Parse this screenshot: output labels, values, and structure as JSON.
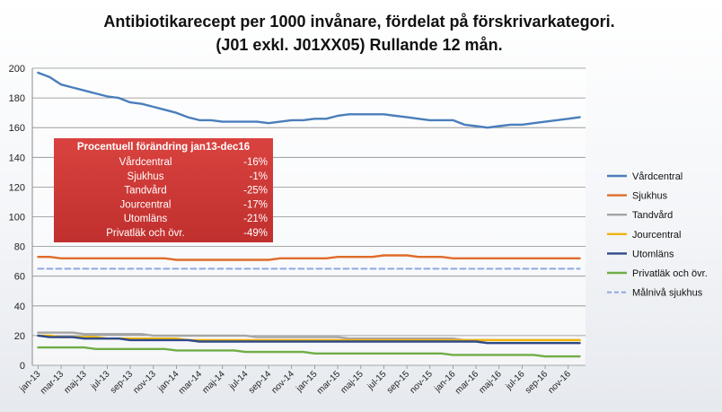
{
  "chart_data": {
    "type": "line",
    "title": "Antibiotikarecept per 1000 invånare, fördelat på förskrivarkategori.",
    "subtitle": "(J01 exkl. J01XX05) Rullande 12 mån.",
    "xlabel": "",
    "ylabel": "",
    "ylim": [
      0,
      200
    ],
    "yticks": [
      0,
      20,
      40,
      60,
      80,
      100,
      120,
      140,
      160,
      180,
      200
    ],
    "grid": true,
    "legend_position": "right",
    "x_tick_labels": [
      "jan-13",
      "mar-13",
      "maj-13",
      "jul-13",
      "sep-13",
      "nov-13",
      "jan-14",
      "mar-14",
      "maj-14",
      "jul-14",
      "sep-14",
      "nov-14",
      "jan-15",
      "mar-15",
      "maj-15",
      "jul-15",
      "sep-15",
      "nov-15",
      "jan-16",
      "mar-16",
      "maj-16",
      "jul-16",
      "sep-16",
      "nov-16"
    ],
    "x": [
      "jan-13",
      "feb-13",
      "mar-13",
      "apr-13",
      "maj-13",
      "jun-13",
      "jul-13",
      "aug-13",
      "sep-13",
      "okt-13",
      "nov-13",
      "dec-13",
      "jan-14",
      "feb-14",
      "mar-14",
      "apr-14",
      "maj-14",
      "jun-14",
      "jul-14",
      "aug-14",
      "sep-14",
      "okt-14",
      "nov-14",
      "dec-14",
      "jan-15",
      "feb-15",
      "mar-15",
      "apr-15",
      "maj-15",
      "jun-15",
      "jul-15",
      "aug-15",
      "sep-15",
      "okt-15",
      "nov-15",
      "dec-15",
      "jan-16",
      "feb-16",
      "mar-16",
      "apr-16",
      "maj-16",
      "jun-16",
      "jul-16",
      "aug-16",
      "sep-16",
      "okt-16",
      "nov-16",
      "dec-16"
    ],
    "series": [
      {
        "name": "Vårdcentral",
        "color": "#4a7ebb",
        "style": "solid",
        "values": [
          197,
          194,
          189,
          187,
          185,
          183,
          181,
          180,
          177,
          176,
          174,
          172,
          170,
          167,
          165,
          165,
          164,
          164,
          164,
          164,
          163,
          164,
          165,
          165,
          166,
          166,
          168,
          169,
          169,
          169,
          169,
          168,
          167,
          166,
          165,
          165,
          165,
          162,
          161,
          160,
          161,
          162,
          162,
          163,
          164,
          165,
          166,
          167
        ]
      },
      {
        "name": "Sjukhus",
        "color": "#e06c2a",
        "style": "solid",
        "values": [
          73,
          73,
          72,
          72,
          72,
          72,
          72,
          72,
          72,
          72,
          72,
          72,
          71,
          71,
          71,
          71,
          71,
          71,
          71,
          71,
          71,
          72,
          72,
          72,
          72,
          72,
          73,
          73,
          73,
          73,
          74,
          74,
          74,
          73,
          73,
          73,
          72,
          72,
          72,
          72,
          72,
          72,
          72,
          72,
          72,
          72,
          72,
          72
        ]
      },
      {
        "name": "Tandvård",
        "color": "#a5a5a5",
        "style": "solid",
        "values": [
          22,
          22,
          22,
          22,
          21,
          21,
          21,
          21,
          21,
          21,
          20,
          20,
          20,
          20,
          20,
          20,
          20,
          20,
          20,
          19,
          19,
          19,
          19,
          19,
          19,
          19,
          19,
          18,
          18,
          18,
          18,
          18,
          18,
          18,
          18,
          18,
          18,
          17,
          17,
          17,
          17,
          17,
          17,
          17,
          17,
          17,
          17,
          17
        ]
      },
      {
        "name": "Jourcentral",
        "color": "#f0b400",
        "style": "solid",
        "values": [
          20,
          20,
          19,
          19,
          19,
          19,
          18,
          18,
          18,
          18,
          18,
          18,
          18,
          17,
          17,
          17,
          17,
          17,
          17,
          17,
          17,
          17,
          17,
          17,
          17,
          17,
          17,
          17,
          17,
          17,
          17,
          17,
          17,
          17,
          17,
          17,
          17,
          17,
          17,
          17,
          17,
          17,
          17,
          17,
          17,
          17,
          17,
          17
        ]
      },
      {
        "name": "Utomläns",
        "color": "#2e4a8a",
        "style": "solid",
        "values": [
          20,
          19,
          19,
          19,
          18,
          18,
          18,
          18,
          17,
          17,
          17,
          17,
          17,
          17,
          16,
          16,
          16,
          16,
          16,
          16,
          16,
          16,
          16,
          16,
          16,
          16,
          16,
          16,
          16,
          16,
          16,
          16,
          16,
          16,
          16,
          16,
          16,
          16,
          16,
          15,
          15,
          15,
          15,
          15,
          15,
          15,
          15,
          15
        ]
      },
      {
        "name": "Privatläk och övr.",
        "color": "#70ad47",
        "style": "solid",
        "values": [
          12,
          12,
          12,
          12,
          12,
          11,
          11,
          11,
          11,
          11,
          11,
          11,
          10,
          10,
          10,
          10,
          10,
          10,
          9,
          9,
          9,
          9,
          9,
          9,
          8,
          8,
          8,
          8,
          8,
          8,
          8,
          8,
          8,
          8,
          8,
          8,
          7,
          7,
          7,
          7,
          7,
          7,
          7,
          7,
          6,
          6,
          6,
          6
        ]
      },
      {
        "name": "Målnivå sjukhus",
        "color": "#8ea8e0",
        "style": "dashed",
        "values": [
          65,
          65,
          65,
          65,
          65,
          65,
          65,
          65,
          65,
          65,
          65,
          65,
          65,
          65,
          65,
          65,
          65,
          65,
          65,
          65,
          65,
          65,
          65,
          65,
          65,
          65,
          65,
          65,
          65,
          65,
          65,
          65,
          65,
          65,
          65,
          65,
          65,
          65,
          65,
          65,
          65,
          65,
          65,
          65,
          65,
          65,
          65,
          65
        ]
      }
    ],
    "annotation_box": {
      "title": "Procentuell förändring jan13-dec16",
      "background": "#c0302e",
      "rows": [
        {
          "label": "Vårdcentral",
          "value": "-16%"
        },
        {
          "label": "Sjukhus",
          "value": "-1%"
        },
        {
          "label": "Tandvård",
          "value": "-25%"
        },
        {
          "label": "Jourcentral",
          "value": "-17%"
        },
        {
          "label": "Utomläns",
          "value": "-21%"
        },
        {
          "label": "Privatläk och övr.",
          "value": "-49%"
        }
      ]
    }
  }
}
